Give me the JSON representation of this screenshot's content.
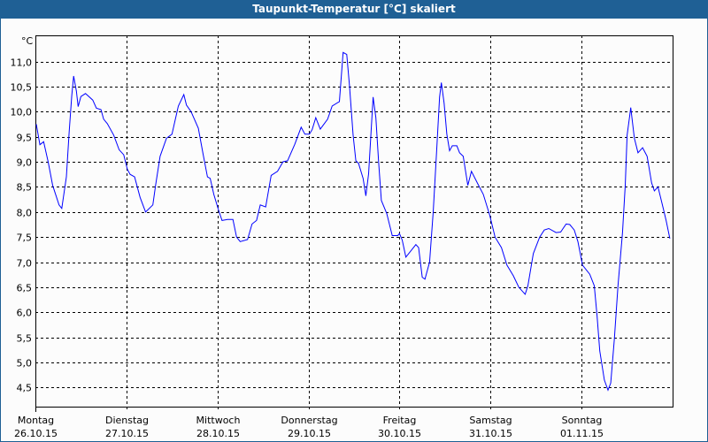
{
  "window": {
    "title": "Taupunkt-Temperatur [°C] skaliert"
  },
  "chart_data": {
    "type": "line",
    "title": "Taupunkt-Temperatur [°C] skaliert",
    "ylabel": "°C",
    "xlabel": "",
    "ylim": [
      4.12,
      11.52
    ],
    "xlim": [
      0,
      7
    ],
    "grid": true,
    "line_color": "#0000ff",
    "yticks": [
      {
        "value": 11.0,
        "label": "11,0"
      },
      {
        "value": 10.5,
        "label": "10,5"
      },
      {
        "value": 10.0,
        "label": "10,0"
      },
      {
        "value": 9.5,
        "label": "9,5"
      },
      {
        "value": 9.0,
        "label": "9,0"
      },
      {
        "value": 8.5,
        "label": "8,5"
      },
      {
        "value": 8.0,
        "label": "8,0"
      },
      {
        "value": 7.5,
        "label": "7,5"
      },
      {
        "value": 7.0,
        "label": "7,0"
      },
      {
        "value": 6.5,
        "label": "6,5"
      },
      {
        "value": 6.0,
        "label": "6,0"
      },
      {
        "value": 5.5,
        "label": "5,5"
      },
      {
        "value": 5.0,
        "label": "5,0"
      },
      {
        "value": 4.5,
        "label": "4,5"
      }
    ],
    "xticks": [
      {
        "day": "Montag",
        "date": "26.10.15"
      },
      {
        "day": "Dienstag",
        "date": "27.10.15"
      },
      {
        "day": "Mittwoch",
        "date": "28.10.15"
      },
      {
        "day": "Donnerstag",
        "date": "29.10.15"
      },
      {
        "day": "Freitag",
        "date": "30.10.15"
      },
      {
        "day": "Samstag",
        "date": "31.10.15"
      },
      {
        "day": "Sonntag",
        "date": "01.11.15"
      }
    ],
    "series": [
      {
        "name": "Taupunkt",
        "x_unit": "days since 26.10.15 00:00",
        "x": [
          0.01,
          0.05,
          0.09,
          0.14,
          0.19,
          0.26,
          0.29,
          0.34,
          0.37,
          0.4,
          0.42,
          0.45,
          0.47,
          0.5,
          0.55,
          0.63,
          0.67,
          0.72,
          0.75,
          0.79,
          0.86,
          0.92,
          0.97,
          1.01,
          1.04,
          1.09,
          1.15,
          1.21,
          1.29,
          1.32,
          1.37,
          1.44,
          1.5,
          1.57,
          1.63,
          1.66,
          1.71,
          1.79,
          1.84,
          1.89,
          1.92,
          1.96,
          2.01,
          2.05,
          2.11,
          2.17,
          2.21,
          2.25,
          2.33,
          2.38,
          2.43,
          2.47,
          2.53,
          2.59,
          2.66,
          2.72,
          2.77,
          2.85,
          2.92,
          2.96,
          3.01,
          3.04,
          3.08,
          3.13,
          3.21,
          3.26,
          3.34,
          3.38,
          3.42,
          3.45,
          3.49,
          3.52,
          3.55,
          3.6,
          3.63,
          3.66,
          3.71,
          3.74,
          3.77,
          3.8,
          3.86,
          3.92,
          3.98,
          4.0,
          4.03,
          4.07,
          4.18,
          4.21,
          4.25,
          4.28,
          4.33,
          4.37,
          4.41,
          4.44,
          4.46,
          4.49,
          4.52,
          4.55,
          4.58,
          4.63,
          4.66,
          4.7,
          4.75,
          4.79,
          4.86,
          4.92,
          4.99,
          5.05,
          5.12,
          5.18,
          5.25,
          5.31,
          5.38,
          5.41,
          5.47,
          5.54,
          5.59,
          5.64,
          5.72,
          5.77,
          5.83,
          5.87,
          5.92,
          5.96,
          6.01,
          6.09,
          6.14,
          6.17,
          6.2,
          6.25,
          6.29,
          6.32,
          6.36,
          6.4,
          6.45,
          6.48,
          6.5,
          6.53,
          6.54,
          6.58,
          6.62,
          6.67,
          6.72,
          6.77,
          6.8,
          6.84,
          6.9,
          6.93,
          6.97
        ],
        "y": [
          9.75,
          9.34,
          9.4,
          9.0,
          8.53,
          8.14,
          8.07,
          8.7,
          9.58,
          10.32,
          10.71,
          10.41,
          10.1,
          10.3,
          10.36,
          10.23,
          10.07,
          10.04,
          9.85,
          9.76,
          9.53,
          9.24,
          9.14,
          8.85,
          8.75,
          8.7,
          8.29,
          8.0,
          8.14,
          8.53,
          9.11,
          9.47,
          9.55,
          10.11,
          10.34,
          10.13,
          10.0,
          9.67,
          9.17,
          8.7,
          8.67,
          8.35,
          8.05,
          7.83,
          7.85,
          7.85,
          7.5,
          7.41,
          7.45,
          7.76,
          7.83,
          8.14,
          8.1,
          8.73,
          8.81,
          9.0,
          9.02,
          9.35,
          9.69,
          9.55,
          9.55,
          9.64,
          9.88,
          9.65,
          9.85,
          10.11,
          10.2,
          11.18,
          11.14,
          10.52,
          9.53,
          9.02,
          8.97,
          8.67,
          8.32,
          8.76,
          10.29,
          9.88,
          9.0,
          8.23,
          7.97,
          7.53,
          7.53,
          7.57,
          7.44,
          7.1,
          7.35,
          7.29,
          6.7,
          6.66,
          7.0,
          8.0,
          9.29,
          10.29,
          10.58,
          10.17,
          9.55,
          9.22,
          9.32,
          9.32,
          9.18,
          9.11,
          8.53,
          8.81,
          8.56,
          8.35,
          7.94,
          7.5,
          7.29,
          6.94,
          6.73,
          6.5,
          6.36,
          6.53,
          7.17,
          7.5,
          7.64,
          7.67,
          7.59,
          7.6,
          7.76,
          7.75,
          7.64,
          7.41,
          6.94,
          6.76,
          6.53,
          5.94,
          5.23,
          4.65,
          4.45,
          4.59,
          5.47,
          6.53,
          7.59,
          8.53,
          9.53,
          9.94,
          10.08,
          9.47,
          9.18,
          9.28,
          9.11,
          8.58,
          8.42,
          8.5,
          8.05,
          7.82,
          7.47
        ]
      }
    ]
  }
}
